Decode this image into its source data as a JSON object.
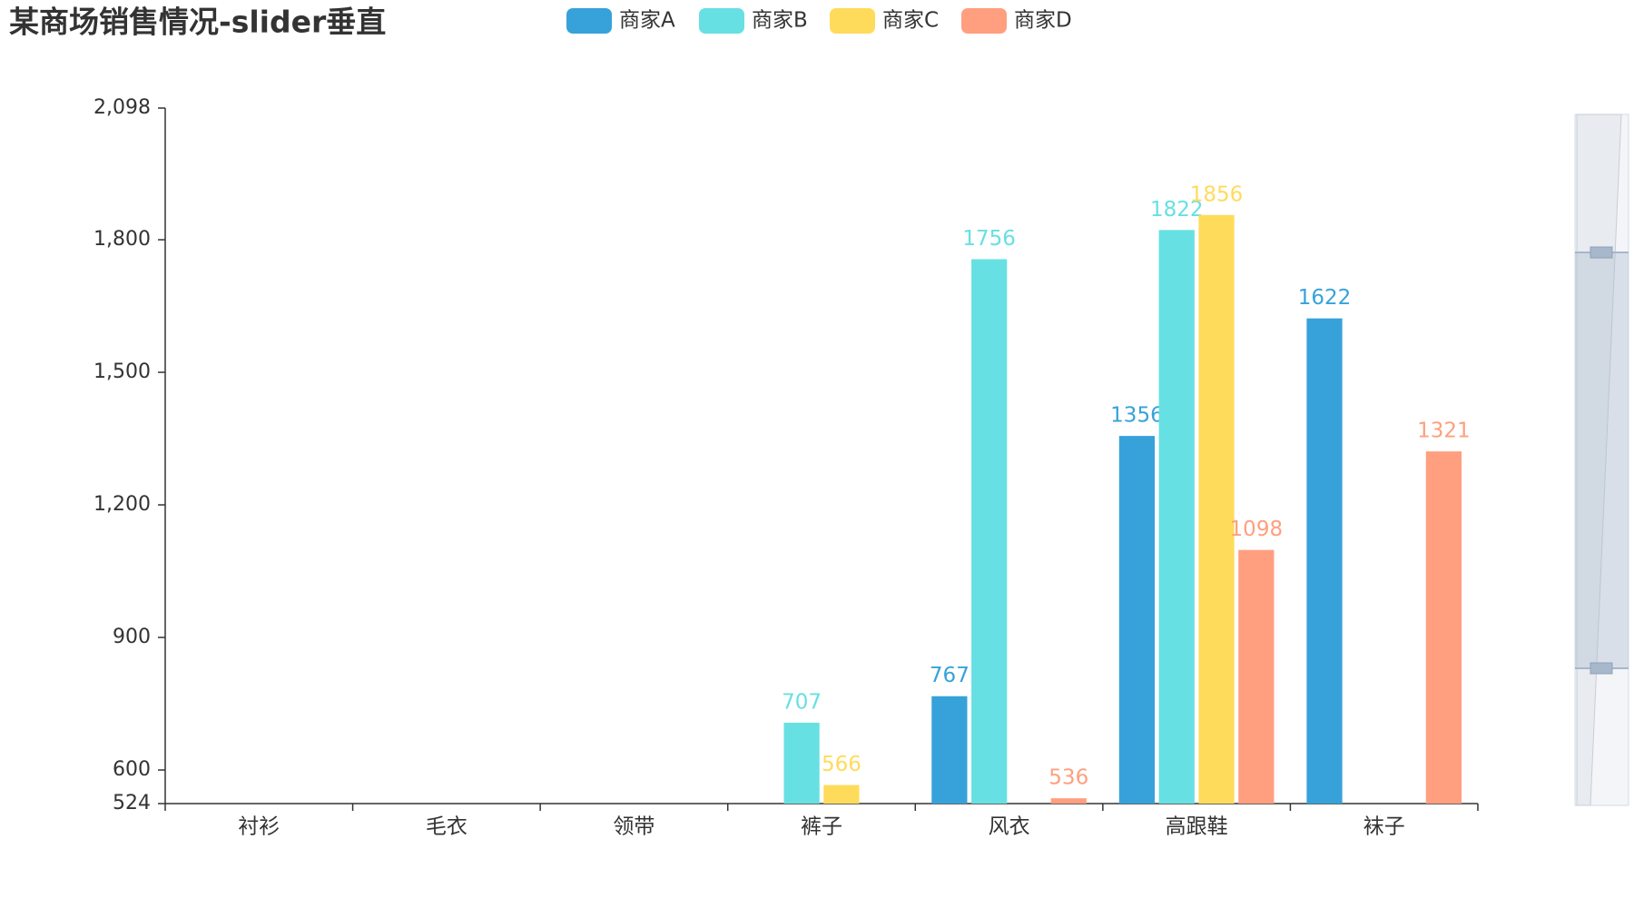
{
  "chart_data": {
    "type": "bar",
    "title": "某商场销售情况-slider垂直",
    "categories": [
      "衬衫",
      "毛衣",
      "领带",
      "裤子",
      "风衣",
      "高跟鞋",
      "袜子"
    ],
    "series": [
      {
        "name": "商家A",
        "color": "#37a2da",
        "values": [
          null,
          null,
          null,
          null,
          767,
          1356,
          1622
        ]
      },
      {
        "name": "商家B",
        "color": "#67e0e3",
        "values": [
          null,
          null,
          null,
          707,
          1756,
          1822,
          null
        ]
      },
      {
        "name": "商家C",
        "color": "#ffdb5c",
        "values": [
          null,
          null,
          null,
          566,
          null,
          1856,
          null
        ]
      },
      {
        "name": "商家D",
        "color": "#ff9f7f",
        "values": [
          null,
          null,
          null,
          null,
          536,
          1098,
          1321
        ]
      }
    ],
    "ylim": [
      524,
      2098
    ],
    "yticks": [
      524,
      600,
      900,
      {
        "value": 1200,
        "label": "1,200"
      },
      {
        "value": 1500,
        "label": "1,500"
      },
      {
        "value": 1800,
        "label": "1,800"
      },
      {
        "value": 2098,
        "label": "2,098"
      }
    ],
    "legend": "top"
  }
}
